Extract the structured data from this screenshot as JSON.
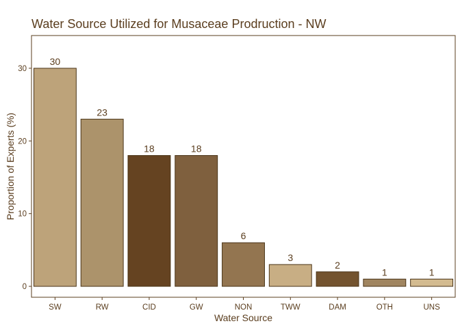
{
  "chart_data": {
    "type": "bar",
    "title": "Water Source Utilized for Musaceae Prodruction -  NW",
    "xlabel": "Water Source",
    "ylabel": "Proportion of Experts (%)",
    "categories": [
      "SW",
      "RW",
      "CID",
      "GW",
      "NON",
      "TWW",
      "DAM",
      "OTH",
      "UNS"
    ],
    "values": [
      30,
      23,
      18,
      18,
      6,
      3,
      2,
      1,
      1
    ],
    "data_labels": [
      "30",
      "23",
      "18",
      "18",
      "6",
      "3",
      "2",
      "1",
      "1"
    ],
    "bar_colors": [
      "#bda37a",
      "#ac936b",
      "#654321",
      "#7f603e",
      "#937550",
      "#c8ae84",
      "#73532f",
      "#a08560",
      "#d3bb90"
    ],
    "bar_outline_color": "#4a3418",
    "text_color": "#5a3d1e",
    "axis_color": "#5a3d1e",
    "y_ticks": [
      0,
      10,
      20,
      30
    ],
    "y_tick_labels": [
      "0",
      "10",
      "20",
      "30"
    ],
    "ylim": [
      -1.5,
      34.5
    ],
    "grid": false,
    "legend": "none"
  }
}
